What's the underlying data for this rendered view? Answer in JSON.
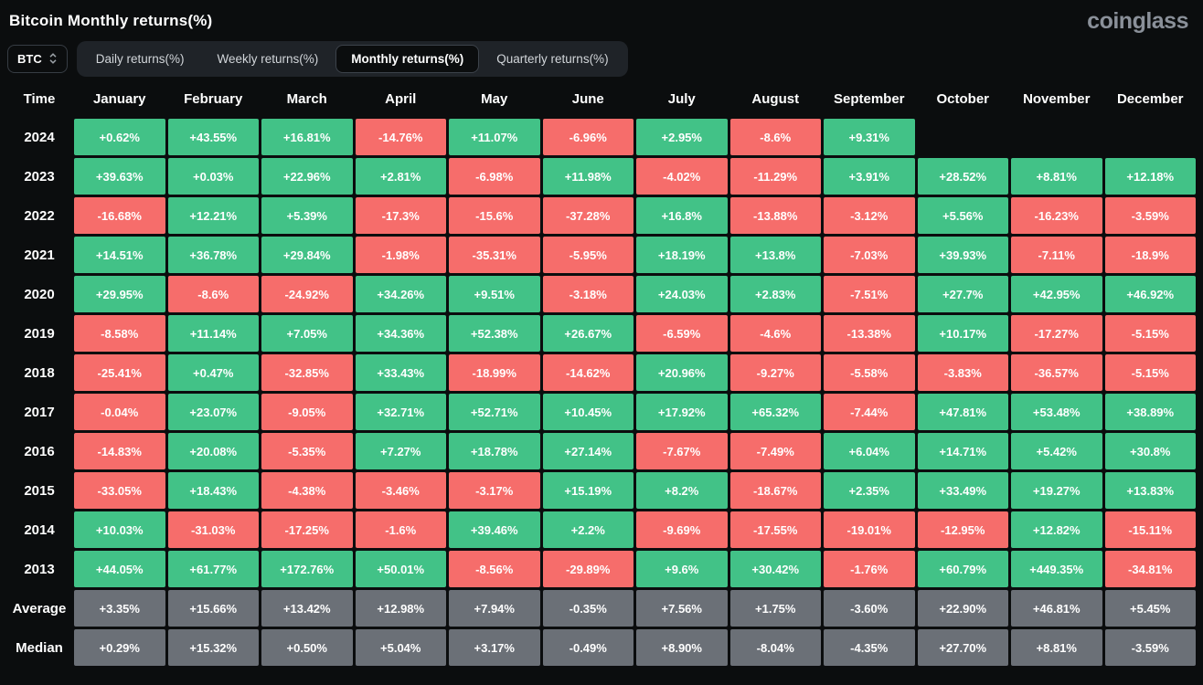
{
  "header": {
    "title": "Bitcoin Monthly returns(%)",
    "logo": "coinglass"
  },
  "controls": {
    "symbol": {
      "value": "BTC"
    },
    "tabs": [
      {
        "label": "Daily returns(%)",
        "active": false
      },
      {
        "label": "Weekly returns(%)",
        "active": false
      },
      {
        "label": "Monthly returns(%)",
        "active": true
      },
      {
        "label": "Quarterly returns(%)",
        "active": false
      }
    ]
  },
  "chart_data": {
    "type": "table",
    "title": "Bitcoin Monthly returns(%)",
    "row_header": "Time",
    "columns": [
      "January",
      "February",
      "March",
      "April",
      "May",
      "June",
      "July",
      "August",
      "September",
      "October",
      "November",
      "December"
    ],
    "rows": [
      {
        "label": "2024",
        "kind": "year",
        "values": [
          "+0.62%",
          "+43.55%",
          "+16.81%",
          "-14.76%",
          "+11.07%",
          "-6.96%",
          "+2.95%",
          "-8.6%",
          "+9.31%",
          "",
          "",
          ""
        ]
      },
      {
        "label": "2023",
        "kind": "year",
        "values": [
          "+39.63%",
          "+0.03%",
          "+22.96%",
          "+2.81%",
          "-6.98%",
          "+11.98%",
          "-4.02%",
          "-11.29%",
          "+3.91%",
          "+28.52%",
          "+8.81%",
          "+12.18%"
        ]
      },
      {
        "label": "2022",
        "kind": "year",
        "values": [
          "-16.68%",
          "+12.21%",
          "+5.39%",
          "-17.3%",
          "-15.6%",
          "-37.28%",
          "+16.8%",
          "-13.88%",
          "-3.12%",
          "+5.56%",
          "-16.23%",
          "-3.59%"
        ]
      },
      {
        "label": "2021",
        "kind": "year",
        "values": [
          "+14.51%",
          "+36.78%",
          "+29.84%",
          "-1.98%",
          "-35.31%",
          "-5.95%",
          "+18.19%",
          "+13.8%",
          "-7.03%",
          "+39.93%",
          "-7.11%",
          "-18.9%"
        ]
      },
      {
        "label": "2020",
        "kind": "year",
        "values": [
          "+29.95%",
          "-8.6%",
          "-24.92%",
          "+34.26%",
          "+9.51%",
          "-3.18%",
          "+24.03%",
          "+2.83%",
          "-7.51%",
          "+27.7%",
          "+42.95%",
          "+46.92%"
        ]
      },
      {
        "label": "2019",
        "kind": "year",
        "values": [
          "-8.58%",
          "+11.14%",
          "+7.05%",
          "+34.36%",
          "+52.38%",
          "+26.67%",
          "-6.59%",
          "-4.6%",
          "-13.38%",
          "+10.17%",
          "-17.27%",
          "-5.15%"
        ]
      },
      {
        "label": "2018",
        "kind": "year",
        "values": [
          "-25.41%",
          "+0.47%",
          "-32.85%",
          "+33.43%",
          "-18.99%",
          "-14.62%",
          "+20.96%",
          "-9.27%",
          "-5.58%",
          "-3.83%",
          "-36.57%",
          "-5.15%"
        ]
      },
      {
        "label": "2017",
        "kind": "year",
        "values": [
          "-0.04%",
          "+23.07%",
          "-9.05%",
          "+32.71%",
          "+52.71%",
          "+10.45%",
          "+17.92%",
          "+65.32%",
          "-7.44%",
          "+47.81%",
          "+53.48%",
          "+38.89%"
        ]
      },
      {
        "label": "2016",
        "kind": "year",
        "values": [
          "-14.83%",
          "+20.08%",
          "-5.35%",
          "+7.27%",
          "+18.78%",
          "+27.14%",
          "-7.67%",
          "-7.49%",
          "+6.04%",
          "+14.71%",
          "+5.42%",
          "+30.8%"
        ]
      },
      {
        "label": "2015",
        "kind": "year",
        "values": [
          "-33.05%",
          "+18.43%",
          "-4.38%",
          "-3.46%",
          "-3.17%",
          "+15.19%",
          "+8.2%",
          "-18.67%",
          "+2.35%",
          "+33.49%",
          "+19.27%",
          "+13.83%"
        ]
      },
      {
        "label": "2014",
        "kind": "year",
        "values": [
          "+10.03%",
          "-31.03%",
          "-17.25%",
          "-1.6%",
          "+39.46%",
          "+2.2%",
          "-9.69%",
          "-17.55%",
          "-19.01%",
          "-12.95%",
          "+12.82%",
          "-15.11%"
        ]
      },
      {
        "label": "2013",
        "kind": "year",
        "values": [
          "+44.05%",
          "+61.77%",
          "+172.76%",
          "+50.01%",
          "-8.56%",
          "-29.89%",
          "+9.6%",
          "+30.42%",
          "-1.76%",
          "+60.79%",
          "+449.35%",
          "-34.81%"
        ]
      },
      {
        "label": "Average",
        "kind": "summary",
        "values": [
          "+3.35%",
          "+15.66%",
          "+13.42%",
          "+12.98%",
          "+7.94%",
          "-0.35%",
          "+7.56%",
          "+1.75%",
          "-3.60%",
          "+22.90%",
          "+46.81%",
          "+5.45%"
        ]
      },
      {
        "label": "Median",
        "kind": "summary",
        "values": [
          "+0.29%",
          "+15.32%",
          "+0.50%",
          "+5.04%",
          "+3.17%",
          "-0.49%",
          "+8.90%",
          "-8.04%",
          "-4.35%",
          "+27.70%",
          "+8.81%",
          "-3.59%"
        ]
      }
    ],
    "color_coding": {
      "positive": "#42c287",
      "negative": "#f66d6b",
      "summary": "#6b7077",
      "background": "#0b0d0e"
    }
  }
}
